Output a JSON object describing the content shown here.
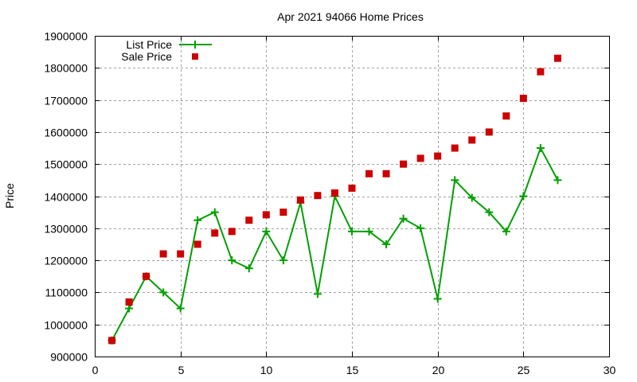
{
  "chart_data": {
    "type": "line",
    "title": "Apr 2021 94066 Home Prices",
    "xlabel": "",
    "ylabel": "Price",
    "xlim": [
      0,
      30
    ],
    "ylim": [
      900000,
      1900000
    ],
    "x_ticks": [
      0,
      5,
      10,
      15,
      20,
      25,
      30
    ],
    "y_ticks": [
      900000,
      1000000,
      1100000,
      1200000,
      1300000,
      1400000,
      1500000,
      1600000,
      1700000,
      1800000,
      1900000
    ],
    "grid": true,
    "legend_position": "top-left",
    "x": [
      1,
      2,
      3,
      4,
      5,
      6,
      7,
      8,
      9,
      10,
      11,
      12,
      13,
      14,
      15,
      16,
      17,
      18,
      19,
      20,
      21,
      22,
      23,
      24,
      25,
      26,
      27
    ],
    "series": [
      {
        "name": "List Price",
        "style": "lines+points",
        "marker": "plus",
        "color": "#00a000",
        "values": [
          950000,
          1050000,
          1150000,
          1100000,
          1050000,
          1325000,
          1350000,
          1200000,
          1175000,
          1290000,
          1200000,
          1380000,
          1095000,
          1400000,
          1290000,
          1290000,
          1250000,
          1330000,
          1300000,
          1080000,
          1450000,
          1395000,
          1350000,
          1290000,
          1400000,
          1550000,
          1450000
        ]
      },
      {
        "name": "Sale Price",
        "style": "points",
        "marker": "square",
        "color": "#cc0000",
        "values": [
          950000,
          1070000,
          1150000,
          1220000,
          1220000,
          1250000,
          1285000,
          1290000,
          1325000,
          1342000,
          1350000,
          1388000,
          1402000,
          1410000,
          1425000,
          1470000,
          1470000,
          1500000,
          1518000,
          1525000,
          1550000,
          1575000,
          1600000,
          1650000,
          1705000,
          1788000,
          1830000
        ]
      }
    ]
  }
}
